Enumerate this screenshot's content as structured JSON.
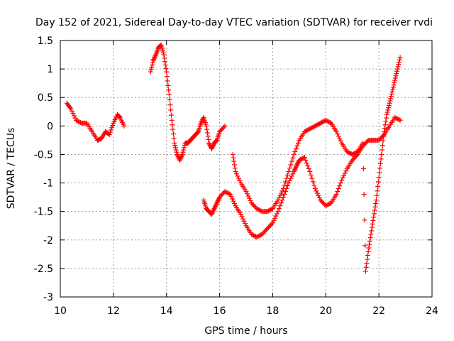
{
  "chart_data": {
    "type": "scatter",
    "title": "Day 152 of 2021, Sidereal Day-to-day VTEC variation (SDTVAR) for receiver rvdi",
    "xlabel": "GPS time / hours",
    "ylabel": "SDTVAR / TECUs",
    "xlim": [
      10,
      24
    ],
    "ylim": [
      -3,
      1.5
    ],
    "xticks": [
      "10",
      "12",
      "14",
      "16",
      "18",
      "20",
      "22",
      "24"
    ],
    "yticks": [
      "1.5",
      "1",
      "0.5",
      "0",
      "-0.5",
      "-1",
      "-1.5",
      "-2",
      "-2.5",
      "-3"
    ],
    "grid": true,
    "marker": "plus",
    "color": "#ff0000",
    "series": [
      {
        "points": [
          [
            10.25,
            0.4
          ],
          [
            10.4,
            0.3
          ],
          [
            10.6,
            0.1
          ],
          [
            10.8,
            0.05
          ],
          [
            11.0,
            0.05
          ],
          [
            11.2,
            -0.1
          ],
          [
            11.4,
            -0.25
          ],
          [
            11.55,
            -0.22
          ],
          [
            11.7,
            -0.1
          ],
          [
            11.85,
            -0.15
          ],
          [
            12.0,
            0.05
          ],
          [
            12.15,
            0.2
          ],
          [
            12.25,
            0.15
          ],
          [
            12.4,
            0.0
          ]
        ]
      },
      {
        "points": [
          [
            13.4,
            0.95
          ],
          [
            13.5,
            1.15
          ],
          [
            13.6,
            1.25
          ],
          [
            13.7,
            1.38
          ],
          [
            13.8,
            1.42
          ],
          [
            13.9,
            1.25
          ],
          [
            14.0,
            0.95
          ],
          [
            14.1,
            0.55
          ],
          [
            14.2,
            0.1
          ],
          [
            14.3,
            -0.3
          ],
          [
            14.4,
            -0.5
          ],
          [
            14.5,
            -0.6
          ],
          [
            14.6,
            -0.5
          ],
          [
            14.7,
            -0.3
          ],
          [
            14.8,
            -0.3
          ],
          [
            14.9,
            -0.25
          ],
          [
            15.0,
            -0.2
          ],
          [
            15.1,
            -0.15
          ],
          [
            15.2,
            -0.1
          ],
          [
            15.3,
            0.05
          ],
          [
            15.4,
            0.15
          ],
          [
            15.5,
            0.0
          ],
          [
            15.6,
            -0.3
          ],
          [
            15.7,
            -0.4
          ],
          [
            15.8,
            -0.3
          ],
          [
            15.9,
            -0.25
          ],
          [
            16.0,
            -0.1
          ],
          [
            16.2,
            0.0
          ]
        ]
      },
      {
        "points": [
          [
            15.4,
            -1.3
          ],
          [
            15.5,
            -1.45
          ],
          [
            15.6,
            -1.5
          ],
          [
            15.7,
            -1.55
          ],
          [
            15.8,
            -1.45
          ],
          [
            15.9,
            -1.35
          ],
          [
            16.0,
            -1.25
          ],
          [
            16.2,
            -1.15
          ],
          [
            16.4,
            -1.2
          ],
          [
            16.6,
            -1.4
          ],
          [
            16.8,
            -1.55
          ],
          [
            17.0,
            -1.75
          ],
          [
            17.2,
            -1.9
          ],
          [
            17.4,
            -1.95
          ],
          [
            17.6,
            -1.9
          ],
          [
            17.8,
            -1.8
          ],
          [
            18.0,
            -1.7
          ],
          [
            18.2,
            -1.5
          ],
          [
            18.4,
            -1.25
          ],
          [
            18.6,
            -1.0
          ],
          [
            18.8,
            -0.8
          ],
          [
            18.9,
            -0.7
          ],
          [
            19.0,
            -0.6
          ],
          [
            19.2,
            -0.55
          ],
          [
            19.4,
            -0.8
          ],
          [
            19.6,
            -1.1
          ],
          [
            19.8,
            -1.3
          ],
          [
            20.0,
            -1.4
          ],
          [
            20.2,
            -1.35
          ],
          [
            20.4,
            -1.2
          ],
          [
            20.6,
            -0.95
          ],
          [
            20.8,
            -0.75
          ],
          [
            21.0,
            -0.6
          ],
          [
            21.2,
            -0.5
          ],
          [
            21.4,
            -0.35
          ],
          [
            21.6,
            -0.25
          ],
          [
            21.8,
            -0.25
          ],
          [
            22.0,
            -0.25
          ],
          [
            22.2,
            -0.15
          ],
          [
            22.4,
            0.0
          ],
          [
            22.6,
            0.15
          ],
          [
            22.8,
            0.1
          ]
        ]
      },
      {
        "points": [
          [
            16.5,
            -0.5
          ],
          [
            16.6,
            -0.8
          ],
          [
            16.8,
            -1.0
          ],
          [
            17.0,
            -1.15
          ],
          [
            17.2,
            -1.35
          ],
          [
            17.4,
            -1.45
          ],
          [
            17.6,
            -1.5
          ],
          [
            17.8,
            -1.5
          ],
          [
            18.0,
            -1.45
          ],
          [
            18.2,
            -1.3
          ],
          [
            18.4,
            -1.1
          ],
          [
            18.6,
            -0.8
          ],
          [
            18.8,
            -0.5
          ],
          [
            19.0,
            -0.25
          ],
          [
            19.2,
            -0.1
          ],
          [
            19.4,
            -0.05
          ],
          [
            19.6,
            0.0
          ],
          [
            19.8,
            0.05
          ],
          [
            20.0,
            0.1
          ],
          [
            20.2,
            0.05
          ],
          [
            20.4,
            -0.1
          ],
          [
            20.6,
            -0.3
          ],
          [
            20.8,
            -0.45
          ],
          [
            21.0,
            -0.5
          ],
          [
            21.2,
            -0.45
          ],
          [
            21.4,
            -0.3
          ],
          [
            21.5,
            -2.55
          ],
          [
            21.6,
            -2.2
          ],
          [
            21.7,
            -1.9
          ],
          [
            21.8,
            -1.6
          ],
          [
            21.9,
            -1.3
          ],
          [
            22.0,
            -0.9
          ],
          [
            22.1,
            -0.5
          ],
          [
            22.2,
            -0.1
          ],
          [
            22.3,
            0.2
          ],
          [
            22.4,
            0.4
          ],
          [
            22.5,
            0.6
          ],
          [
            22.6,
            0.8
          ],
          [
            22.7,
            1.0
          ],
          [
            22.8,
            1.2
          ]
        ]
      }
    ]
  }
}
